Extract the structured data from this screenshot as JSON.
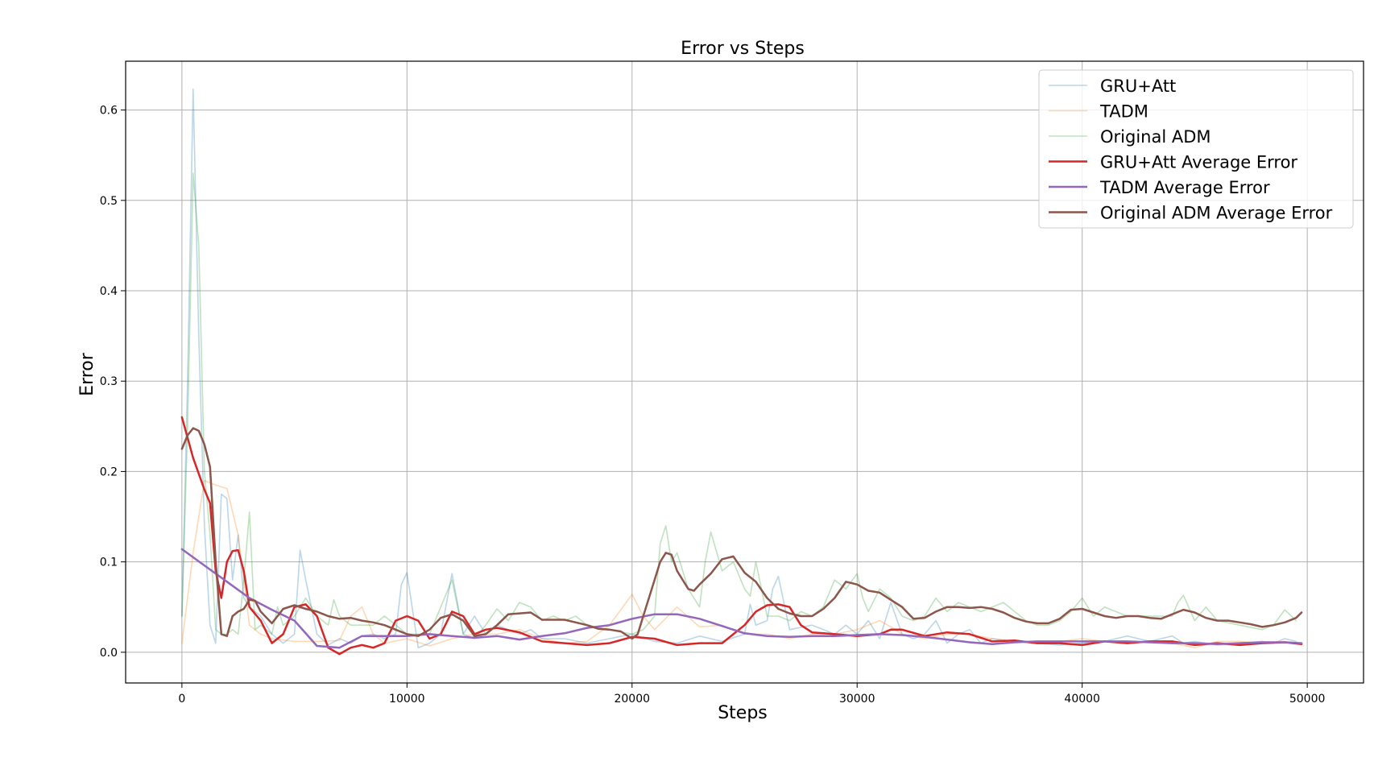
{
  "chart_data": {
    "type": "line",
    "title": "Error vs Steps",
    "xlabel": "Steps",
    "ylabel": "Error",
    "xlim": [
      -2500,
      52500
    ],
    "ylim": [
      -0.034,
      0.654
    ],
    "xticks": [
      0,
      10000,
      20000,
      30000,
      40000,
      50000
    ],
    "xtick_labels": [
      "0",
      "10000",
      "20000",
      "30000",
      "40000",
      "50000"
    ],
    "yticks": [
      0.0,
      0.1,
      0.2,
      0.3,
      0.4,
      0.5,
      0.6
    ],
    "ytick_labels": [
      "0.0",
      "0.1",
      "0.2",
      "0.3",
      "0.4",
      "0.5",
      "0.6"
    ],
    "grid": true,
    "legend_position": "top-right",
    "series": [
      {
        "name": "GRU+Att",
        "color": "#1f77b4",
        "opacity": 0.3,
        "width": 1.6,
        "x": [
          0,
          250,
          500,
          750,
          1000,
          1250,
          1500,
          1750,
          2000,
          2250,
          2500,
          2750,
          3000,
          3500,
          4000,
          4500,
          5000,
          5250,
          5500,
          6000,
          6500,
          7000,
          7500,
          8000,
          8500,
          9000,
          9500,
          9750,
          10000,
          10500,
          11000,
          11500,
          12000,
          12500,
          13000,
          13500,
          14000,
          14500,
          15000,
          15500,
          16000,
          17000,
          18000,
          19000,
          20000,
          21000,
          22000,
          23000,
          24000,
          25000,
          25250,
          25500,
          26000,
          26250,
          26500,
          27000,
          28000,
          29000,
          29500,
          30000,
          30500,
          31000,
          31500,
          32000,
          32500,
          33000,
          33500,
          34000,
          34500,
          35000,
          35500,
          36000,
          37000,
          38000,
          39000,
          40000,
          41000,
          42000,
          43000,
          44000,
          44500,
          45000,
          45500,
          46000,
          47000,
          48000,
          48500,
          49000,
          49500
        ],
        "y": [
          0.04,
          0.3,
          0.623,
          0.35,
          0.14,
          0.03,
          0.01,
          0.175,
          0.17,
          0.08,
          0.13,
          0.06,
          0.05,
          0.04,
          0.02,
          0.01,
          0.02,
          0.113,
          0.08,
          0.02,
          0.008,
          0.015,
          0.01,
          0.018,
          0.02,
          0.015,
          0.02,
          0.075,
          0.088,
          0.005,
          0.01,
          0.02,
          0.087,
          0.02,
          0.04,
          0.02,
          0.03,
          0.025,
          0.02,
          0.025,
          0.015,
          0.015,
          0.01,
          0.015,
          0.02,
          0.012,
          0.01,
          0.018,
          0.012,
          0.02,
          0.053,
          0.03,
          0.035,
          0.07,
          0.084,
          0.025,
          0.03,
          0.02,
          0.03,
          0.02,
          0.035,
          0.015,
          0.055,
          0.02,
          0.015,
          0.02,
          0.035,
          0.01,
          0.02,
          0.025,
          0.01,
          0.015,
          0.012,
          0.01,
          0.008,
          0.01,
          0.012,
          0.018,
          0.012,
          0.018,
          0.01,
          0.012,
          0.01,
          0.008,
          0.01,
          0.012,
          0.01,
          0.015,
          0.012
        ]
      },
      {
        "name": "TADM",
        "color": "#ff7f0e",
        "opacity": 0.3,
        "width": 1.6,
        "x": [
          0,
          500,
          1000,
          1500,
          2000,
          2500,
          3000,
          3500,
          4000,
          5000,
          6000,
          7000,
          7500,
          8000,
          8500,
          9000,
          10000,
          11000,
          12000,
          13000,
          14000,
          15000,
          16000,
          17000,
          18000,
          19000,
          20000,
          20500,
          21000,
          22000,
          23000,
          24000,
          25000,
          26000,
          27000,
          28000,
          29000,
          30000,
          31000,
          31500,
          32000,
          33000,
          34000,
          35000,
          36000,
          37000,
          38000,
          39000,
          40000,
          41000,
          42000,
          43000,
          44000,
          45000,
          46000,
          47000,
          48000,
          49000,
          49500
        ],
        "y": [
          0.01,
          0.11,
          0.19,
          0.185,
          0.181,
          0.13,
          0.03,
          0.02,
          0.015,
          0.012,
          0.012,
          0.013,
          0.04,
          0.05,
          0.02,
          0.01,
          0.015,
          0.007,
          0.015,
          0.02,
          0.02,
          0.025,
          0.015,
          0.01,
          0.012,
          0.03,
          0.064,
          0.04,
          0.025,
          0.05,
          0.028,
          0.03,
          0.02,
          0.02,
          0.015,
          0.02,
          0.02,
          0.025,
          0.035,
          0.028,
          0.02,
          0.015,
          0.02,
          0.02,
          0.015,
          0.012,
          0.01,
          0.012,
          0.015,
          0.012,
          0.01,
          0.012,
          0.01,
          0.005,
          0.012,
          0.012,
          0.01,
          0.012,
          0.01
        ]
      },
      {
        "name": "Original ADM",
        "color": "#2ca02c",
        "opacity": 0.3,
        "width": 1.6,
        "x": [
          0,
          250,
          500,
          750,
          1000,
          1250,
          1500,
          1750,
          2000,
          2250,
          2500,
          2750,
          3000,
          3250,
          3500,
          4000,
          4250,
          4500,
          5000,
          5500,
          6000,
          6500,
          6750,
          7000,
          7500,
          8000,
          8500,
          9000,
          10000,
          11000,
          12000,
          12500,
          13000,
          13500,
          14000,
          14500,
          15000,
          15500,
          16000,
          16500,
          17000,
          17500,
          18000,
          19000,
          20000,
          20500,
          21000,
          21250,
          21500,
          21750,
          22000,
          22500,
          23000,
          23250,
          23500,
          24000,
          24500,
          25000,
          25250,
          25500,
          26000,
          26500,
          27000,
          27500,
          28000,
          28500,
          29000,
          29500,
          30000,
          30250,
          30500,
          31000,
          31250,
          31500,
          32000,
          32500,
          33000,
          33500,
          34000,
          34500,
          35000,
          35500,
          36000,
          36500,
          37000,
          37500,
          38000,
          38500,
          39000,
          39500,
          40000,
          40500,
          41000,
          42000,
          43000,
          44000,
          44250,
          44500,
          45000,
          45500,
          46000,
          47000,
          48000,
          48500,
          49000,
          49500
        ],
        "y": [
          0.04,
          0.25,
          0.53,
          0.45,
          0.2,
          0.13,
          0.025,
          0.02,
          0.02,
          0.025,
          0.02,
          0.08,
          0.155,
          0.025,
          0.03,
          0.02,
          0.05,
          0.03,
          0.04,
          0.06,
          0.04,
          0.03,
          0.058,
          0.04,
          0.03,
          0.03,
          0.03,
          0.04,
          0.02,
          0.02,
          0.08,
          0.02,
          0.015,
          0.03,
          0.048,
          0.035,
          0.055,
          0.05,
          0.035,
          0.04,
          0.035,
          0.04,
          0.03,
          0.025,
          0.02,
          0.025,
          0.04,
          0.12,
          0.14,
          0.1,
          0.11,
          0.07,
          0.05,
          0.1,
          0.133,
          0.09,
          0.1,
          0.07,
          0.062,
          0.1,
          0.04,
          0.04,
          0.035,
          0.045,
          0.04,
          0.05,
          0.08,
          0.07,
          0.087,
          0.06,
          0.045,
          0.07,
          0.065,
          0.06,
          0.04,
          0.035,
          0.04,
          0.06,
          0.045,
          0.055,
          0.05,
          0.045,
          0.05,
          0.055,
          0.045,
          0.035,
          0.03,
          0.03,
          0.035,
          0.045,
          0.06,
          0.04,
          0.05,
          0.04,
          0.04,
          0.04,
          0.055,
          0.063,
          0.035,
          0.05,
          0.035,
          0.03,
          0.025,
          0.03,
          0.047,
          0.035
        ]
      },
      {
        "name": "GRU+Att Average Error",
        "color": "#d62728",
        "opacity": 1,
        "width": 2.5,
        "x": [
          0,
          500,
          1000,
          1250,
          1500,
          1750,
          2000,
          2250,
          2500,
          2750,
          3000,
          3500,
          4000,
          4500,
          5000,
          5500,
          6000,
          6500,
          7000,
          7500,
          8000,
          8500,
          9000,
          9500,
          10000,
          10500,
          11000,
          11500,
          12000,
          12500,
          13000,
          13500,
          14000,
          15000,
          16000,
          17000,
          18000,
          19000,
          20000,
          21000,
          22000,
          23000,
          24000,
          25000,
          25500,
          26000,
          26500,
          27000,
          27500,
          28000,
          29000,
          30000,
          31000,
          31500,
          32000,
          33000,
          34000,
          35000,
          36000,
          37000,
          38000,
          39000,
          40000,
          41000,
          42000,
          43000,
          44000,
          45000,
          46000,
          47000,
          48000,
          49000,
          49750
        ],
        "y": [
          0.26,
          0.215,
          0.18,
          0.165,
          0.09,
          0.06,
          0.1,
          0.112,
          0.113,
          0.09,
          0.05,
          0.035,
          0.01,
          0.02,
          0.05,
          0.053,
          0.04,
          0.005,
          -0.002,
          0.005,
          0.008,
          0.005,
          0.01,
          0.035,
          0.04,
          0.035,
          0.015,
          0.02,
          0.045,
          0.04,
          0.02,
          0.025,
          0.027,
          0.022,
          0.012,
          0.01,
          0.008,
          0.01,
          0.017,
          0.015,
          0.008,
          0.01,
          0.01,
          0.03,
          0.045,
          0.052,
          0.053,
          0.05,
          0.03,
          0.022,
          0.02,
          0.018,
          0.02,
          0.025,
          0.025,
          0.018,
          0.022,
          0.02,
          0.012,
          0.013,
          0.01,
          0.01,
          0.008,
          0.012,
          0.01,
          0.012,
          0.012,
          0.008,
          0.01,
          0.008,
          0.01,
          0.011,
          0.009
        ]
      },
      {
        "name": "TADM Average Error",
        "color": "#9467bd",
        "opacity": 1,
        "width": 2.5,
        "x": [
          0,
          1000,
          2000,
          3000,
          4000,
          5000,
          6000,
          7000,
          8000,
          9000,
          10000,
          11000,
          12000,
          13000,
          14000,
          15000,
          16000,
          17000,
          18000,
          19000,
          20000,
          21000,
          22000,
          23000,
          24000,
          25000,
          26000,
          27000,
          28000,
          29000,
          30000,
          31000,
          32000,
          33000,
          34000,
          35000,
          36000,
          37000,
          38000,
          39000,
          40000,
          41000,
          42000,
          43000,
          44000,
          45000,
          46000,
          47000,
          48000,
          49000,
          49750
        ],
        "y": [
          0.114,
          0.096,
          0.078,
          0.06,
          0.047,
          0.035,
          0.007,
          0.005,
          0.018,
          0.018,
          0.018,
          0.02,
          0.018,
          0.016,
          0.018,
          0.014,
          0.018,
          0.021,
          0.027,
          0.03,
          0.037,
          0.042,
          0.042,
          0.037,
          0.029,
          0.021,
          0.018,
          0.017,
          0.018,
          0.018,
          0.019,
          0.02,
          0.019,
          0.017,
          0.014,
          0.011,
          0.009,
          0.011,
          0.012,
          0.012,
          0.012,
          0.012,
          0.012,
          0.011,
          0.01,
          0.01,
          0.009,
          0.01,
          0.011,
          0.011,
          0.01
        ]
      },
      {
        "name": "Original ADM Average Error",
        "color": "#8c564b",
        "opacity": 1,
        "width": 2.5,
        "x": [
          0,
          250,
          500,
          750,
          1000,
          1250,
          1500,
          1750,
          2000,
          2250,
          2500,
          2750,
          3000,
          3250,
          3500,
          4000,
          4250,
          4500,
          5000,
          5500,
          6000,
          6500,
          7000,
          7500,
          8000,
          8500,
          9000,
          9500,
          10000,
          10500,
          11000,
          11500,
          12000,
          12500,
          13000,
          13500,
          14000,
          14500,
          15000,
          15500,
          16000,
          16500,
          17000,
          17500,
          18000,
          18500,
          19000,
          19500,
          20000,
          20250,
          20500,
          21000,
          21250,
          21500,
          21750,
          22000,
          22500,
          22750,
          23000,
          23500,
          24000,
          24500,
          25000,
          25500,
          26000,
          26500,
          27000,
          27500,
          28000,
          28500,
          29000,
          29500,
          30000,
          30500,
          31000,
          31500,
          32000,
          32500,
          33000,
          33500,
          34000,
          34500,
          35000,
          35500,
          36000,
          36500,
          37000,
          37500,
          38000,
          38500,
          39000,
          39500,
          40000,
          40500,
          41000,
          41500,
          42000,
          42500,
          43000,
          43500,
          44000,
          44500,
          45000,
          45500,
          46000,
          46500,
          47000,
          47500,
          48000,
          48500,
          49000,
          49500,
          49750
        ],
        "y": [
          0.225,
          0.24,
          0.248,
          0.245,
          0.23,
          0.205,
          0.1,
          0.02,
          0.018,
          0.04,
          0.045,
          0.048,
          0.058,
          0.057,
          0.045,
          0.032,
          0.04,
          0.048,
          0.052,
          0.048,
          0.045,
          0.04,
          0.037,
          0.038,
          0.035,
          0.033,
          0.03,
          0.025,
          0.02,
          0.018,
          0.025,
          0.038,
          0.042,
          0.035,
          0.018,
          0.02,
          0.03,
          0.042,
          0.043,
          0.044,
          0.036,
          0.036,
          0.036,
          0.033,
          0.03,
          0.026,
          0.025,
          0.023,
          0.015,
          0.02,
          0.04,
          0.08,
          0.1,
          0.11,
          0.108,
          0.09,
          0.07,
          0.068,
          0.075,
          0.087,
          0.103,
          0.106,
          0.088,
          0.078,
          0.06,
          0.048,
          0.043,
          0.04,
          0.04,
          0.048,
          0.06,
          0.078,
          0.075,
          0.068,
          0.066,
          0.058,
          0.05,
          0.037,
          0.038,
          0.045,
          0.05,
          0.05,
          0.049,
          0.05,
          0.048,
          0.044,
          0.038,
          0.034,
          0.032,
          0.032,
          0.037,
          0.047,
          0.048,
          0.044,
          0.04,
          0.038,
          0.04,
          0.04,
          0.038,
          0.037,
          0.042,
          0.047,
          0.044,
          0.038,
          0.035,
          0.035,
          0.033,
          0.031,
          0.028,
          0.03,
          0.033,
          0.038,
          0.044
        ]
      }
    ]
  }
}
